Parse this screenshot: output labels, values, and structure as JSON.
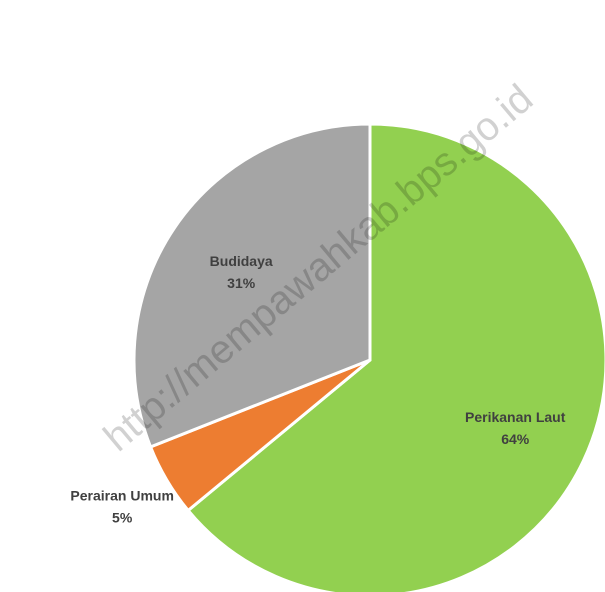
{
  "chart_data": {
    "type": "pie",
    "categories": [
      "Perikanan Laut",
      "Perairan Umum",
      "Budidaya"
    ],
    "values": [
      64,
      5,
      31
    ],
    "value_labels": [
      "64%",
      "5%",
      "31%"
    ],
    "colors": [
      "#92d050",
      "#ed7d31",
      "#a5a5a5"
    ],
    "watermark": "http://mempawahkab.bps.go.id"
  }
}
